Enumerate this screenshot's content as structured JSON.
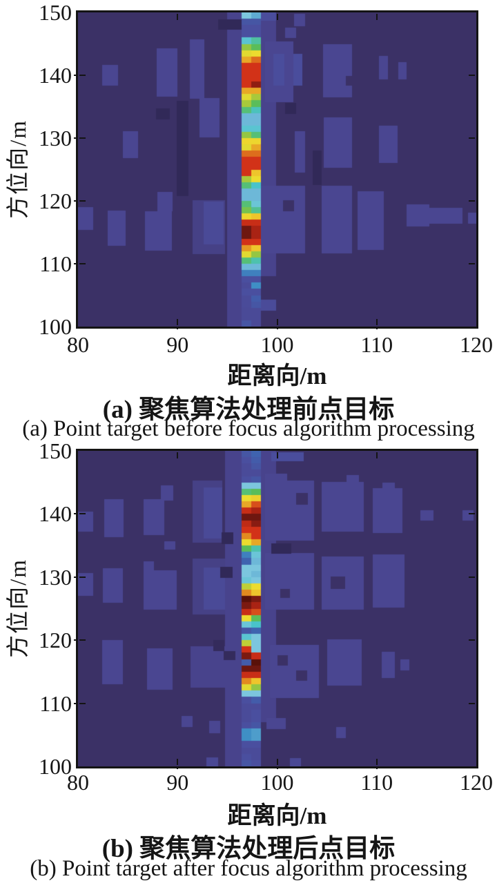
{
  "figure": {
    "description": "Two SAR point-target heatmap panels before and after focus algorithm processing"
  },
  "chart_data": [
    {
      "type": "heatmap",
      "panel": "a",
      "caption_zh": "(a) 聚焦算法处理前点目标",
      "caption_en": "(a) Point target before focus algorithm processing",
      "xlabel": "距离向/m",
      "ylabel": "方位向/m",
      "xlim": [
        80,
        120
      ],
      "ylim": [
        100,
        150
      ],
      "xticks": [
        80,
        90,
        100,
        110,
        120
      ],
      "yticks": [
        100,
        110,
        120,
        130,
        140,
        150
      ],
      "grid": false,
      "legend": "none",
      "colormap_stops": [
        [
          0.0,
          "#2a234e"
        ],
        [
          0.05,
          "#3b3166"
        ],
        [
          0.13,
          "#4a4691"
        ],
        [
          0.18,
          "#4a4f9f"
        ],
        [
          0.24,
          "#3f63af"
        ],
        [
          0.3,
          "#3f8fc5"
        ],
        [
          0.38,
          "#7cc6de"
        ],
        [
          0.44,
          "#49c3ca"
        ],
        [
          0.52,
          "#5abd5a"
        ],
        [
          0.6,
          "#a8c93b"
        ],
        [
          0.66,
          "#ecdc2f"
        ],
        [
          0.7,
          "#eec52c"
        ],
        [
          0.74,
          "#e28a20"
        ],
        [
          0.8,
          "#d23218"
        ],
        [
          0.88,
          "#a92314"
        ],
        [
          0.97,
          "#6e1710"
        ],
        [
          1.0,
          "#591109"
        ]
      ],
      "background_level": 0.05,
      "stripe": {
        "x": 96.4,
        "width": 2.0,
        "columns": 2,
        "azimuth_top": 150,
        "azimuth_bottom": 100,
        "row_height": 1,
        "rows_left": [
          0.38,
          0.2,
          0.18,
          0.18,
          0.42,
          0.58,
          0.65,
          0.72,
          0.8,
          0.8,
          0.8,
          0.8,
          0.72,
          0.65,
          0.6,
          0.5,
          0.36,
          0.36,
          0.42,
          0.58,
          0.67,
          0.65,
          0.76,
          0.8,
          0.8,
          0.8,
          0.6,
          0.5,
          0.36,
          0.36,
          0.5,
          0.55,
          0.67,
          0.82,
          0.97,
          0.97,
          0.8,
          0.73,
          0.65,
          0.5,
          0.36,
          0.28,
          0.18,
          0.16,
          0.18,
          0.16,
          0.16,
          0.15,
          0.15,
          0.2
        ],
        "rows_right": [
          0.34,
          0.2,
          0.18,
          0.18,
          0.47,
          0.52,
          0.66,
          0.76,
          0.8,
          0.8,
          0.8,
          0.92,
          0.72,
          0.6,
          0.52,
          0.45,
          0.36,
          0.36,
          0.42,
          0.5,
          0.67,
          0.72,
          0.76,
          0.8,
          0.8,
          0.7,
          0.66,
          0.44,
          0.36,
          0.36,
          0.4,
          0.48,
          0.7,
          0.82,
          0.88,
          0.88,
          0.8,
          0.7,
          0.58,
          0.46,
          0.36,
          0.28,
          0.18,
          0.3,
          0.18,
          0.22,
          0.2,
          0.15,
          0.15,
          0.15
        ]
      },
      "patches": [
        [
          95.0,
          150.0,
          1.4,
          50.0,
          0.12
        ],
        [
          98.4,
          150.0,
          1.5,
          42.0,
          0.12
        ],
        [
          98.4,
          150.0,
          1.5,
          1.3,
          0.17
        ],
        [
          80.0,
          119.0,
          1.5,
          3.6,
          0.13
        ],
        [
          82.4,
          141.6,
          1.6,
          3.2,
          0.13
        ],
        [
          83.0,
          118.5,
          1.8,
          5.6,
          0.13
        ],
        [
          84.5,
          131.1,
          1.5,
          4.3,
          0.13
        ],
        [
          87.9,
          144.3,
          2.1,
          7.7,
          0.13
        ],
        [
          88.0,
          121.4,
          1.5,
          3.1,
          0.13
        ],
        [
          86.7,
          118.4,
          2.7,
          6.3,
          0.13
        ],
        [
          91.2,
          145.7,
          1.5,
          9.4,
          0.13
        ],
        [
          92.2,
          136.4,
          2.0,
          6.3,
          0.13
        ],
        [
          91.5,
          120.1,
          3.3,
          8.6,
          0.11
        ],
        [
          92.6,
          119.9,
          2.0,
          6.8,
          0.15
        ],
        [
          98.8,
          145.4,
          2.8,
          9.7,
          0.13
        ],
        [
          99.6,
          143.4,
          1.1,
          5.0,
          0.17
        ],
        [
          101.6,
          143.4,
          0.9,
          5.0,
          0.17
        ],
        [
          101.7,
          149.8,
          1.1,
          2.0,
          0.13
        ],
        [
          100.8,
          147.6,
          1.1,
          1.7,
          0.13
        ],
        [
          104.6,
          144.9,
          2.9,
          8.4,
          0.13
        ],
        [
          110.2,
          143.1,
          0.9,
          3.8,
          0.13
        ],
        [
          112.2,
          142.1,
          0.8,
          2.8,
          0.13
        ],
        [
          104.7,
          133.3,
          2.8,
          8.0,
          0.13
        ],
        [
          110.2,
          132.0,
          1.9,
          6.0,
          0.13
        ],
        [
          101.8,
          131.1,
          1.0,
          6.6,
          0.13
        ],
        [
          98.4,
          122.4,
          4.4,
          10.7,
          0.13
        ],
        [
          104.5,
          122.4,
          3.0,
          10.7,
          0.13
        ],
        [
          108.1,
          121.5,
          2.6,
          9.3,
          0.13
        ],
        [
          113.0,
          119.4,
          2.3,
          3.5,
          0.13
        ],
        [
          115.2,
          118.9,
          3.4,
          2.5,
          0.13
        ],
        [
          119.2,
          118.1,
          0.8,
          1.7,
          0.13
        ],
        [
          98.4,
          104.3,
          1.5,
          1.8,
          0.16
        ],
        [
          89.9,
          135.9,
          1.2,
          15.1,
          0.02
        ],
        [
          94.1,
          148.9,
          2.3,
          1.7,
          0.02
        ],
        [
          87.8,
          134.7,
          1.4,
          1.7,
          0.02
        ],
        [
          106.9,
          139.9,
          1.0,
          1.5,
          0.05
        ],
        [
          100.8,
          135.6,
          1.1,
          1.7,
          0.02
        ],
        [
          100.6,
          120.1,
          1.1,
          1.7,
          0.05
        ],
        [
          103.6,
          128.0,
          0.9,
          5.5,
          0.02
        ],
        [
          96.5,
          103.6,
          1.1,
          1.7,
          0.08
        ]
      ]
    },
    {
      "type": "heatmap",
      "panel": "b",
      "caption_zh": "(b) 聚焦算法处理后点目标",
      "caption_en": "(b) Point target after focus algorithm processing",
      "xlabel": "距离向/m",
      "ylabel": "方位向/m",
      "xlim": [
        80,
        120
      ],
      "ylim": [
        100,
        150
      ],
      "xticks": [
        80,
        90,
        100,
        110,
        120
      ],
      "yticks": [
        100,
        110,
        120,
        130,
        140,
        150
      ],
      "grid": false,
      "legend": "none",
      "colormap_stops": [
        [
          0.0,
          "#2a234e"
        ],
        [
          0.05,
          "#3b3166"
        ],
        [
          0.13,
          "#4a4691"
        ],
        [
          0.18,
          "#4a4f9f"
        ],
        [
          0.24,
          "#3f63af"
        ],
        [
          0.3,
          "#3f8fc5"
        ],
        [
          0.38,
          "#7cc6de"
        ],
        [
          0.44,
          "#49c3ca"
        ],
        [
          0.52,
          "#5abd5a"
        ],
        [
          0.6,
          "#a8c93b"
        ],
        [
          0.66,
          "#ecdc2f"
        ],
        [
          0.7,
          "#eec52c"
        ],
        [
          0.74,
          "#e28a20"
        ],
        [
          0.8,
          "#d23218"
        ],
        [
          0.88,
          "#a92314"
        ],
        [
          0.97,
          "#6e1710"
        ],
        [
          1.0,
          "#591109"
        ]
      ],
      "background_level": 0.05,
      "stripe": {
        "x": 96.4,
        "width": 2.0,
        "columns": 2,
        "azimuth_top": 150,
        "azimuth_bottom": 100,
        "row_height": 1,
        "rows_left": [
          0.2,
          0.18,
          0.16,
          0.16,
          0.18,
          0.38,
          0.5,
          0.66,
          0.72,
          0.82,
          0.97,
          0.84,
          0.8,
          0.74,
          0.66,
          0.52,
          0.28,
          0.24,
          0.38,
          0.38,
          0.4,
          0.62,
          0.74,
          1.0,
          0.95,
          0.82,
          0.66,
          0.4,
          0.2,
          0.42,
          0.62,
          0.8,
          0.95,
          0.22,
          0.97,
          0.82,
          0.74,
          0.65,
          0.38,
          0.18,
          0.16,
          0.16,
          0.16,
          0.18,
          0.3,
          0.3,
          0.18,
          0.16,
          0.18,
          0.2
        ],
        "rows_right": [
          0.24,
          0.22,
          0.2,
          0.16,
          0.2,
          0.38,
          0.52,
          0.68,
          0.78,
          0.88,
          0.97,
          0.93,
          0.8,
          0.8,
          0.72,
          0.46,
          0.4,
          0.36,
          0.38,
          0.36,
          0.38,
          0.66,
          0.7,
          0.95,
          0.88,
          0.78,
          0.52,
          0.44,
          0.24,
          0.38,
          0.38,
          0.38,
          0.82,
          1.0,
          0.97,
          0.82,
          0.7,
          0.58,
          0.38,
          0.22,
          0.16,
          0.18,
          0.18,
          0.2,
          0.32,
          0.32,
          0.18,
          0.16,
          0.16,
          0.18
        ]
      },
      "patches": [
        [
          94.8,
          150.0,
          1.6,
          50.0,
          0.12
        ],
        [
          98.4,
          150.0,
          1.5,
          43.0,
          0.12
        ],
        [
          99.4,
          149.8,
          3.3,
          1.4,
          0.17
        ],
        [
          80.0,
          140.4,
          1.5,
          3.2,
          0.13
        ],
        [
          80.0,
          130.6,
          1.5,
          3.6,
          0.13
        ],
        [
          82.6,
          142.3,
          2.0,
          6.0,
          0.13
        ],
        [
          82.5,
          131.4,
          2.0,
          5.5,
          0.13
        ],
        [
          86.6,
          142.3,
          2.1,
          5.6,
          0.13
        ],
        [
          88.3,
          144.5,
          1.3,
          2.4,
          0.13
        ],
        [
          86.6,
          132.5,
          1.0,
          1.5,
          0.13
        ],
        [
          86.6,
          131.1,
          3.3,
          6.3,
          0.13
        ],
        [
          88.7,
          135.7,
          1.1,
          1.4,
          0.13
        ],
        [
          91.5,
          145.3,
          3.0,
          9.9,
          0.11
        ],
        [
          92.6,
          144.2,
          1.9,
          8.1,
          0.15
        ],
        [
          91.5,
          132.9,
          3.3,
          8.8,
          0.11
        ],
        [
          92.6,
          131.5,
          2.2,
          6.7,
          0.15
        ],
        [
          98.8,
          146.4,
          2.2,
          1.5,
          0.13
        ],
        [
          98.8,
          145.3,
          4.9,
          9.5,
          0.13
        ],
        [
          104.5,
          145.1,
          4.2,
          7.9,
          0.13
        ],
        [
          107.0,
          146.2,
          1.2,
          1.2,
          0.13
        ],
        [
          109.6,
          144.1,
          3.0,
          7.1,
          0.13
        ],
        [
          110.6,
          145.0,
          1.2,
          1.0,
          0.13
        ],
        [
          114.4,
          140.6,
          1.3,
          1.6,
          0.13
        ],
        [
          118.6,
          140.6,
          1.1,
          1.6,
          0.13
        ],
        [
          98.8,
          133.8,
          4.9,
          9.0,
          0.13
        ],
        [
          104.5,
          133.3,
          4.2,
          8.5,
          0.13
        ],
        [
          109.6,
          133.6,
          3.2,
          8.4,
          0.13
        ],
        [
          82.4,
          120.0,
          2.1,
          7.0,
          0.13
        ],
        [
          86.9,
          118.7,
          2.6,
          6.6,
          0.13
        ],
        [
          91.3,
          119.0,
          3.5,
          6.5,
          0.12
        ],
        [
          99.3,
          119.3,
          4.9,
          8.5,
          0.13
        ],
        [
          105.0,
          120.1,
          3.5,
          7.3,
          0.13
        ],
        [
          110.5,
          118.2,
          1.3,
          4.2,
          0.13
        ],
        [
          112.4,
          117.0,
          0.9,
          1.8,
          0.13
        ],
        [
          93.2,
          107.2,
          1.1,
          2.0,
          0.13
        ],
        [
          90.4,
          108.0,
          1.1,
          1.8,
          0.13
        ],
        [
          98.9,
          107.7,
          2.0,
          1.8,
          0.13
        ],
        [
          105.9,
          106.2,
          1.0,
          1.7,
          0.13
        ],
        [
          92.9,
          101.4,
          1.2,
          1.4,
          0.14
        ],
        [
          101.3,
          101.3,
          1.1,
          1.3,
          0.14
        ],
        [
          94.4,
          137.1,
          1.2,
          1.9,
          0.02
        ],
        [
          94.3,
          131.6,
          1.2,
          1.7,
          0.02
        ],
        [
          101.9,
          143.3,
          1.2,
          1.8,
          0.05
        ],
        [
          105.4,
          130.1,
          1.4,
          2.0,
          0.05
        ],
        [
          100.3,
          128.1,
          1.0,
          1.4,
          0.05
        ],
        [
          99.4,
          135.3,
          2.0,
          1.6,
          0.02
        ],
        [
          93.6,
          120.0,
          1.1,
          1.7,
          0.03
        ],
        [
          94.6,
          118.3,
          1.2,
          1.5,
          0.03
        ],
        [
          100.0,
          117.6,
          1.1,
          1.6,
          0.05
        ],
        [
          101.9,
          115.2,
          1.1,
          1.6,
          0.05
        ]
      ]
    }
  ]
}
